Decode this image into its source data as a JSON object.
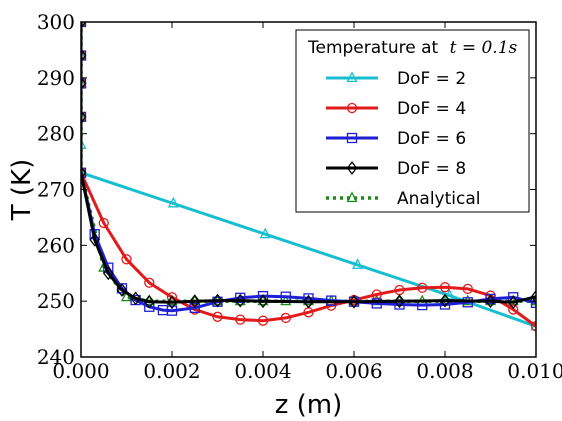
{
  "chart_data": {
    "type": "line",
    "xlabel": "z (m)",
    "ylabel": "T (K)",
    "xlim": [
      0.0,
      0.01
    ],
    "ylim": [
      240,
      300
    ],
    "xticks": [
      "0.000",
      "0.002",
      "0.004",
      "0.006",
      "0.008",
      "0.010"
    ],
    "xtick_values": [
      0.0,
      0.002,
      0.004,
      0.006,
      0.008,
      0.01
    ],
    "yticks": [
      "240",
      "250",
      "260",
      "270",
      "280",
      "290",
      "300"
    ],
    "ytick_values": [
      240,
      250,
      260,
      270,
      280,
      290,
      300
    ],
    "grid": false,
    "legend": {
      "title_prefix": "Temperature at",
      "title_math": "t = 0.1s",
      "placement": "top-right"
    },
    "series": [
      {
        "name": "DoF = 2",
        "color": "#17becf",
        "marker": "triangle",
        "style": "solid",
        "x": [
          0.0,
          0.0,
          0.0,
          0.0,
          0.0,
          0.0,
          0.0,
          0.00203,
          0.00405,
          0.00608,
          0.0081,
          0.01
        ],
        "y": [
          300,
          294,
          289,
          283,
          278,
          273,
          273,
          267.5,
          262,
          256.5,
          251,
          245.5
        ]
      },
      {
        "name": "DoF = 4",
        "color": "#e31a1c",
        "marker": "circle",
        "style": "solid",
        "x": [
          0.0,
          0.0,
          0.0,
          0.0,
          0.0,
          0.0005,
          0.001,
          0.0015,
          0.002,
          0.0025,
          0.003,
          0.0035,
          0.004,
          0.0045,
          0.005,
          0.0055,
          0.006,
          0.0065,
          0.007,
          0.0075,
          0.008,
          0.0085,
          0.009,
          0.0095,
          0.01
        ],
        "y": [
          300,
          294,
          289,
          283,
          273,
          264,
          257.5,
          253.3,
          250.7,
          248.5,
          247.2,
          246.7,
          246.5,
          247,
          248,
          249.2,
          250.2,
          251.2,
          252,
          252.4,
          252.5,
          252.2,
          251,
          248.5,
          245.5
        ]
      },
      {
        "name": "DoF = 6",
        "color": "#1f1fd6",
        "marker": "square",
        "style": "solid",
        "x": [
          0.0,
          0.0,
          0.0,
          0.0,
          0.0,
          0.0003,
          0.0006,
          0.0009,
          0.0012,
          0.0015,
          0.0018,
          0.002,
          0.0025,
          0.003,
          0.0035,
          0.004,
          0.0045,
          0.005,
          0.0055,
          0.006,
          0.0065,
          0.007,
          0.0075,
          0.008,
          0.0085,
          0.009,
          0.0095,
          0.01
        ],
        "y": [
          300,
          294,
          289,
          283,
          273,
          262,
          256,
          252.3,
          250.2,
          249,
          248.4,
          248.3,
          248.8,
          249.9,
          250.6,
          250.9,
          250.8,
          250.5,
          250.1,
          249.9,
          249.6,
          249.4,
          249.3,
          249.4,
          249.8,
          250.4,
          250.7,
          249.7
        ]
      },
      {
        "name": "DoF = 8",
        "color": "#000000",
        "marker": "diamond",
        "style": "solid",
        "x": [
          0.0,
          0.0,
          0.0,
          0.0,
          0.0,
          0.0003,
          0.0006,
          0.0009,
          0.0012,
          0.0015,
          0.002,
          0.0025,
          0.003,
          0.0035,
          0.004,
          0.005,
          0.006,
          0.007,
          0.008,
          0.009,
          0.0095,
          0.01
        ],
        "y": [
          300,
          294,
          289,
          283,
          273,
          261,
          255,
          252,
          250.5,
          249.9,
          249.8,
          250,
          250.1,
          250.1,
          250,
          249.9,
          249.9,
          250,
          250.1,
          250,
          249.8,
          250.8
        ]
      },
      {
        "name": "Analytical",
        "color": "#1b8a1b",
        "marker": "triangle",
        "style": "dotted",
        "x": [
          0.0,
          0.0,
          0.0,
          0.0,
          0.0,
          0.0005,
          0.001,
          0.0015,
          0.002,
          0.0025,
          0.003,
          0.0035,
          0.004,
          0.0045,
          0.005,
          0.0055,
          0.006,
          0.0065,
          0.007,
          0.0075,
          0.008,
          0.0085,
          0.009,
          0.0095,
          0.01
        ],
        "y": [
          300,
          294,
          289,
          283,
          273,
          256,
          250.7,
          250,
          250,
          250,
          250,
          250,
          250,
          250,
          250,
          250,
          250,
          250,
          250,
          250,
          250,
          250,
          250,
          250,
          250
        ]
      }
    ]
  }
}
